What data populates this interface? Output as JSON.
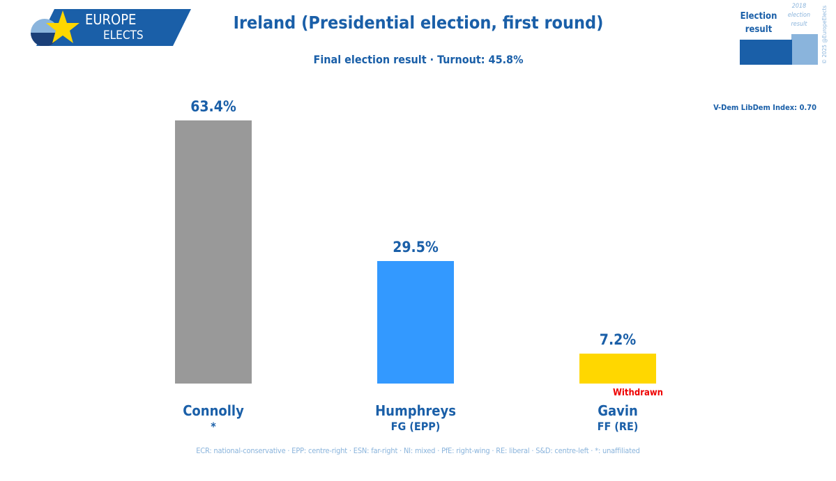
{
  "logo": {
    "line1": "EUROPE",
    "line2": "ELECTS"
  },
  "header": {
    "title": "Ireland (Presidential election, first round)",
    "subtitle": "Final election result · Turnout: 45.8%"
  },
  "legend": {
    "current": "Election result",
    "previous": "2018 election result",
    "copyright": "© 2025 @EuropeElects"
  },
  "vdem": "V-Dem LibDem Index: 0.70",
  "footer": "ECR: national-conservative · EPP: centre-right · ESN: far-right · NI: mixed · PfE: right-wing · RE: liberal · S&D: centre-left · *: unaffiliated",
  "chart_data": {
    "type": "bar",
    "title": "Ireland (Presidential election, first round)",
    "categories": [
      "Connolly",
      "Humphreys",
      "Gavin"
    ],
    "parties": [
      "*",
      "FG (EPP)",
      "FF (RE)"
    ],
    "values": [
      63.4,
      29.5,
      7.2
    ],
    "labels": [
      "63.4%",
      "29.5%",
      "7.2%"
    ],
    "notes": [
      "",
      "",
      "Withdrawn"
    ],
    "colors": [
      "#999999",
      "#3399ff",
      "#ffd700"
    ],
    "ylim": [
      0,
      63.4
    ],
    "grid": false
  }
}
